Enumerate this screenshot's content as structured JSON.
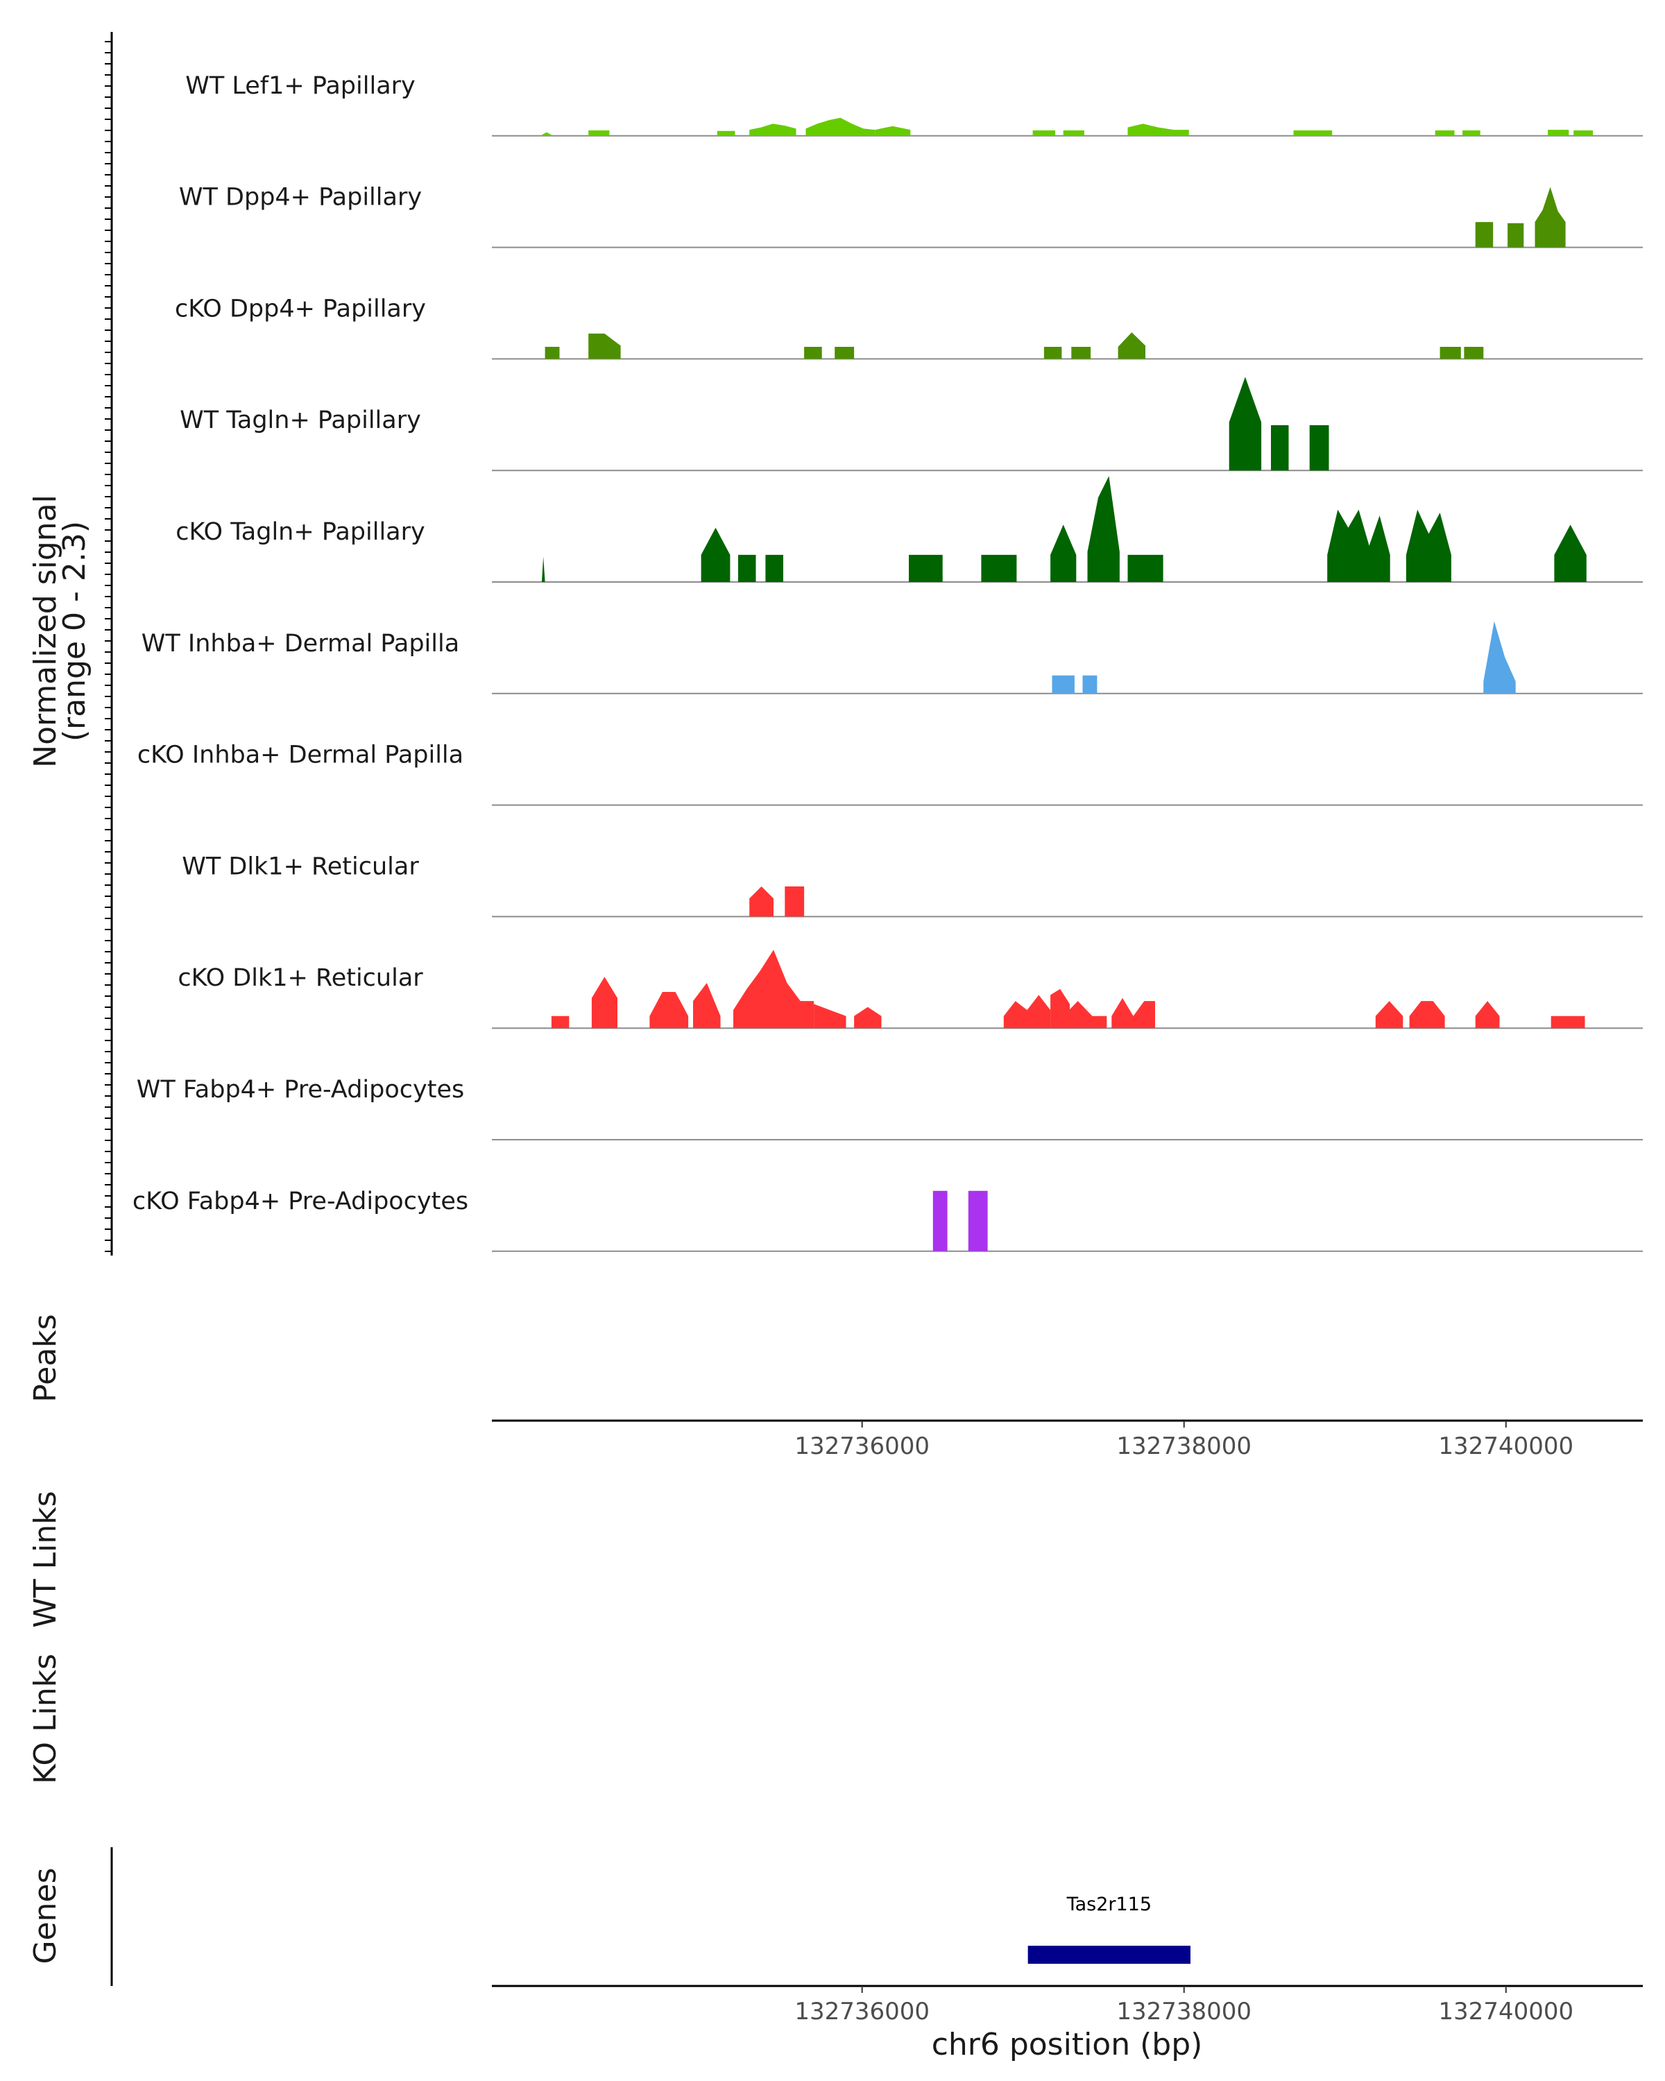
{
  "chart_data": {
    "type": "area",
    "chromosome": "chr6",
    "xlabel": "chr6 position (bp)",
    "xlim": [
      132733700,
      132740850
    ],
    "x_ticks": [
      132736000,
      132738000,
      132740000
    ],
    "x_tick_labels": [
      "132736000",
      "132738000",
      "132740000"
    ],
    "signal_axis_title": [
      "Normalized signal",
      "(range 0 - 2.3)"
    ],
    "ylim": [
      0,
      2.3
    ],
    "tracks": [
      {
        "name": "WT Lef1+ Papillary",
        "color": "#66CC00",
        "segments": [
          {
            "start": 132734000,
            "end": 132734080,
            "profile": [
              0.06
            ]
          },
          {
            "start": 132734300,
            "end": 132734430,
            "profile": [
              0.09,
              0.09
            ]
          },
          {
            "start": 132735100,
            "end": 132735210,
            "profile": [
              0.08,
              0.08
            ]
          },
          {
            "start": 132735300,
            "end": 132735590,
            "profile": [
              0.1,
              0.14,
              0.2,
              0.17,
              0.12
            ]
          },
          {
            "start": 132735650,
            "end": 132736080,
            "profile": [
              0.12,
              0.2,
              0.26,
              0.3,
              0.2,
              0.12,
              0.1
            ]
          },
          {
            "start": 132736080,
            "end": 132736300,
            "profile": [
              0.1,
              0.16,
              0.1
            ]
          },
          {
            "start": 132737060,
            "end": 132737200,
            "profile": [
              0.09,
              0.09
            ]
          },
          {
            "start": 132737250,
            "end": 132737380,
            "profile": [
              0.09,
              0.09
            ]
          },
          {
            "start": 132737650,
            "end": 132738030,
            "profile": [
              0.14,
              0.2,
              0.14,
              0.1,
              0.1
            ]
          },
          {
            "start": 132738680,
            "end": 132738920,
            "profile": [
              0.09,
              0.09
            ]
          },
          {
            "start": 132739560,
            "end": 132739680,
            "profile": [
              0.09,
              0.09
            ]
          },
          {
            "start": 132739730,
            "end": 132739840,
            "profile": [
              0.09,
              0.09
            ]
          },
          {
            "start": 132740260,
            "end": 132740390,
            "profile": [
              0.1,
              0.1
            ]
          },
          {
            "start": 132740420,
            "end": 132740540,
            "profile": [
              0.09,
              0.09
            ]
          }
        ]
      },
      {
        "name": "WT Dpp4+ Papillary",
        "color": "#4C8F00",
        "segments": [
          {
            "start": 132739810,
            "end": 132739920,
            "profile": [
              0.42,
              0.42
            ]
          },
          {
            "start": 132740010,
            "end": 132740110,
            "profile": [
              0.4,
              0.4
            ]
          },
          {
            "start": 132740180,
            "end": 132740370,
            "profile": [
              0.42,
              0.62,
              1.0,
              0.6,
              0.42
            ]
          }
        ]
      },
      {
        "name": "cKO Dpp4+ Papillary",
        "color": "#4C8F00",
        "segments": [
          {
            "start": 132734030,
            "end": 132734120,
            "profile": [
              0.2,
              0.2
            ]
          },
          {
            "start": 132734300,
            "end": 132734500,
            "profile": [
              0.42,
              0.42,
              0.22
            ]
          },
          {
            "start": 132735640,
            "end": 132735750,
            "profile": [
              0.2,
              0.2
            ]
          },
          {
            "start": 132735830,
            "end": 132735950,
            "profile": [
              0.2,
              0.2
            ]
          },
          {
            "start": 132737130,
            "end": 132737240,
            "profile": [
              0.2,
              0.2
            ]
          },
          {
            "start": 132737300,
            "end": 132737420,
            "profile": [
              0.2,
              0.2
            ]
          },
          {
            "start": 132737590,
            "end": 132737760,
            "profile": [
              0.2,
              0.44,
              0.22
            ]
          },
          {
            "start": 132739590,
            "end": 132739720,
            "profile": [
              0.2,
              0.2
            ]
          },
          {
            "start": 132739740,
            "end": 132739860,
            "profile": [
              0.2,
              0.2
            ]
          }
        ]
      },
      {
        "name": "WT Tagln+ Papillary",
        "color": "#006400",
        "segments": [
          {
            "start": 132738280,
            "end": 132738480,
            "profile": [
              0.8,
              1.55,
              0.8
            ]
          },
          {
            "start": 132738540,
            "end": 132738650,
            "profile": [
              0.75,
              0.75
            ]
          },
          {
            "start": 132738780,
            "end": 132738900,
            "profile": [
              0.75,
              0.75
            ]
          }
        ]
      },
      {
        "name": "cKO Tagln+ Papillary",
        "color": "#006400",
        "segments": [
          {
            "start": 132734010,
            "end": 132734030,
            "profile": [
              0.42
            ]
          },
          {
            "start": 132735000,
            "end": 132735180,
            "profile": [
              0.45,
              0.9,
              0.45
            ]
          },
          {
            "start": 132735230,
            "end": 132735340,
            "profile": [
              0.45,
              0.45
            ]
          },
          {
            "start": 132735400,
            "end": 132735510,
            "profile": [
              0.45,
              0.45
            ]
          },
          {
            "start": 132736290,
            "end": 132736500,
            "profile": [
              0.45,
              0.45
            ]
          },
          {
            "start": 132736740,
            "end": 132736960,
            "profile": [
              0.45,
              0.45
            ]
          },
          {
            "start": 132737170,
            "end": 132737330,
            "profile": [
              0.45,
              0.95,
              0.45
            ]
          },
          {
            "start": 132737400,
            "end": 132737600,
            "profile": [
              0.5,
              1.4,
              1.85,
              0.5
            ]
          },
          {
            "start": 132737650,
            "end": 132737870,
            "profile": [
              0.45,
              0.45
            ]
          },
          {
            "start": 132738890,
            "end": 132739280,
            "profile": [
              0.45,
              1.2,
              0.9,
              1.2,
              0.6,
              1.1,
              0.45
            ]
          },
          {
            "start": 132739380,
            "end": 132739660,
            "profile": [
              0.45,
              1.2,
              0.8,
              1.15,
              0.45
            ]
          },
          {
            "start": 132740300,
            "end": 132740500,
            "profile": [
              0.45,
              0.95,
              0.45
            ]
          }
        ]
      },
      {
        "name": "WT Inhba+ Dermal Papilla",
        "color": "#56A6E8",
        "segments": [
          {
            "start": 132737180,
            "end": 132737320,
            "profile": [
              0.3,
              0.3
            ]
          },
          {
            "start": 132737370,
            "end": 132737460,
            "profile": [
              0.3,
              0.3
            ]
          },
          {
            "start": 132739860,
            "end": 132740060,
            "profile": [
              0.2,
              1.2,
              0.6,
              0.2
            ]
          }
        ]
      },
      {
        "name": "cKO Inhba+ Dermal Papilla",
        "color": "#56A6E8",
        "segments": []
      },
      {
        "name": "WT Dlk1+ Reticular",
        "color": "#FF3333",
        "segments": [
          {
            "start": 132735300,
            "end": 132735450,
            "profile": [
              0.3,
              0.5,
              0.3
            ]
          },
          {
            "start": 132735520,
            "end": 132735640,
            "profile": [
              0.5,
              0.5
            ]
          }
        ]
      },
      {
        "name": "cKO Dlk1+ Reticular",
        "color": "#FF3333",
        "segments": [
          {
            "start": 132734070,
            "end": 132734180,
            "profile": [
              0.2,
              0.2
            ]
          },
          {
            "start": 132734320,
            "end": 132734480,
            "profile": [
              0.5,
              0.85,
              0.5
            ]
          },
          {
            "start": 132734680,
            "end": 132734920,
            "profile": [
              0.2,
              0.6,
              0.6,
              0.2
            ]
          },
          {
            "start": 132734950,
            "end": 132735120,
            "profile": [
              0.45,
              0.75,
              0.2
            ]
          },
          {
            "start": 132735200,
            "end": 132735700,
            "profile": [
              0.3,
              0.65,
              0.95,
              1.3,
              0.75,
              0.45,
              0.45
            ]
          },
          {
            "start": 132735700,
            "end": 132735900,
            "profile": [
              0.4,
              0.3,
              0.2
            ]
          },
          {
            "start": 132735950,
            "end": 132736120,
            "profile": [
              0.2,
              0.35,
              0.2
            ]
          },
          {
            "start": 132736880,
            "end": 132737170,
            "profile": [
              0.2,
              0.45,
              0.3,
              0.55,
              0.3
            ]
          },
          {
            "start": 132737170,
            "end": 132737290,
            "profile": [
              0.55,
              0.65,
              0.4
            ]
          },
          {
            "start": 132737250,
            "end": 132737520,
            "profile": [
              0.2,
              0.45,
              0.2,
              0.2
            ]
          },
          {
            "start": 132737550,
            "end": 132737820,
            "profile": [
              0.2,
              0.5,
              0.2,
              0.45,
              0.45
            ]
          },
          {
            "start": 132739190,
            "end": 132739360,
            "profile": [
              0.2,
              0.45,
              0.2
            ]
          },
          {
            "start": 132739400,
            "end": 132739620,
            "profile": [
              0.2,
              0.45,
              0.45,
              0.2
            ]
          },
          {
            "start": 132739810,
            "end": 132739960,
            "profile": [
              0.2,
              0.45,
              0.2
            ]
          },
          {
            "start": 132740280,
            "end": 132740490,
            "profile": [
              0.2,
              0.2
            ]
          }
        ]
      },
      {
        "name": "WT Fabp4+ Pre-Adipocytes",
        "color": "#A933EE",
        "segments": []
      },
      {
        "name": "cKO Fabp4+ Pre-Adipocytes",
        "color": "#A933EE",
        "segments": [
          {
            "start": 132736440,
            "end": 132736530,
            "profile": [
              1.0,
              1.0
            ]
          },
          {
            "start": 132736660,
            "end": 132736780,
            "profile": [
              1.0,
              1.0
            ]
          }
        ]
      }
    ],
    "panels": [
      "Peaks",
      "WT Links",
      "KO Links",
      "Genes"
    ],
    "genes": [
      {
        "name": "Tas2r115",
        "start": 132737030,
        "end": 132738040,
        "color": "#00008B"
      }
    ]
  }
}
